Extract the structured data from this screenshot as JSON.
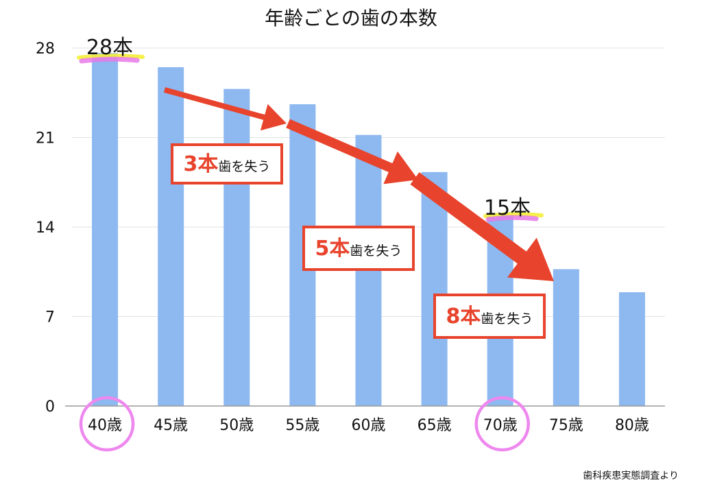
{
  "chart_data": {
    "type": "bar",
    "title": "年齢ごとの歯の本数",
    "categories": [
      "40歳",
      "45歳",
      "50歳",
      "55歳",
      "60歳",
      "65歳",
      "70歳",
      "75歳",
      "80歳"
    ],
    "values": [
      27.6,
      26.5,
      24.8,
      23.6,
      21.2,
      18.3,
      15.0,
      10.7,
      8.9
    ],
    "ylim": [
      0,
      28
    ],
    "yticks": [
      0,
      7,
      14,
      21,
      28
    ],
    "grid": true,
    "bar_color": "#8db8f0",
    "annotations": {
      "value_labels": [
        {
          "text": "28本",
          "category": "40歳"
        },
        {
          "text": "15本",
          "category": "70歳"
        }
      ],
      "loss_callouts": [
        {
          "number": "3本",
          "text": "歯を失う"
        },
        {
          "number": "5本",
          "text": "歯を失う"
        },
        {
          "number": "8本",
          "text": "歯を失う"
        }
      ],
      "circled_categories": [
        "40歳",
        "70歳"
      ]
    }
  },
  "source_note": "歯科疾患実態調査より",
  "colors": {
    "arrow": "#e8432c",
    "callout_border": "#e8432c",
    "callout_number": "#e8432c",
    "highlight_circle": "#ee88ee",
    "marker_pink": "#e879e8",
    "marker_yellow": "#f5ee3a",
    "grid": "#e2e2e2",
    "axis": "#9a9a9a"
  }
}
